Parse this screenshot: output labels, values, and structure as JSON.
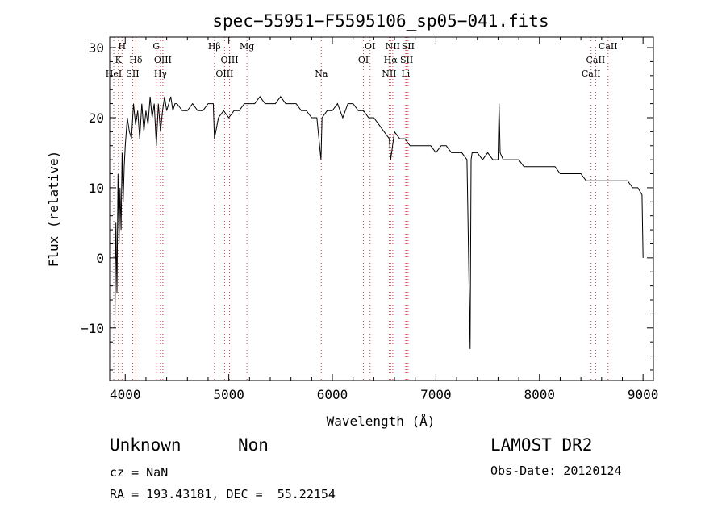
{
  "chart_data": {
    "type": "line",
    "title": "spec−55951−F5595106_sp05−041.fits",
    "xlabel": "Wavelength (Å)",
    "ylabel": "Flux (relative)",
    "xlim": [
      3850,
      9100
    ],
    "ylim": [
      -17.5,
      31.5
    ],
    "xticks": [
      4000,
      5000,
      6000,
      7000,
      8000,
      9000
    ],
    "xtick_labels": [
      "4000",
      "5000",
      "6000",
      "7000",
      "8000",
      "9000"
    ],
    "yticks": [
      -10,
      0,
      10,
      20,
      30
    ],
    "ytick_labels": [
      "−10",
      "0",
      "10",
      "20",
      "30"
    ],
    "grid": false,
    "series": [
      {
        "x": [
          3900,
          3910,
          3920,
          3930,
          3940,
          3950,
          3960,
          3970,
          3980,
          3990,
          4000,
          4020,
          4040,
          4060,
          4080,
          4100,
          4120,
          4140,
          4160,
          4180,
          4200,
          4220,
          4240,
          4260,
          4280,
          4300,
          4320,
          4340,
          4360,
          4380,
          4400,
          4420,
          4440,
          4460,
          4480,
          4500,
          4550,
          4600,
          4650,
          4700,
          4750,
          4800,
          4850,
          4861,
          4900,
          4950,
          5000,
          5050,
          5100,
          5150,
          5200,
          5250,
          5300,
          5350,
          5400,
          5450,
          5500,
          5550,
          5600,
          5650,
          5700,
          5750,
          5800,
          5850,
          5890,
          5900,
          5950,
          6000,
          6050,
          6100,
          6150,
          6200,
          6250,
          6300,
          6350,
          6400,
          6450,
          6500,
          6550,
          6563,
          6600,
          6650,
          6700,
          6750,
          6800,
          6850,
          6900,
          6950,
          7000,
          7050,
          7100,
          7150,
          7200,
          7250,
          7300,
          7330,
          7340,
          7350,
          7360,
          7400,
          7450,
          7500,
          7550,
          7600,
          7610,
          7620,
          7650,
          7700,
          7750,
          7800,
          7850,
          7900,
          7950,
          8000,
          8050,
          8100,
          8150,
          8200,
          8250,
          8300,
          8350,
          8400,
          8450,
          8500,
          8550,
          8600,
          8650,
          8700,
          8750,
          8800,
          8850,
          8900,
          8950,
          8990,
          9000
        ],
        "values": [
          -10,
          5,
          -5,
          12,
          2,
          10,
          4,
          15,
          8,
          13,
          16,
          20,
          18,
          17,
          22,
          19,
          21,
          17,
          22,
          18,
          21,
          19,
          23,
          20,
          22,
          16,
          22,
          18,
          21,
          23,
          21,
          22,
          23,
          21,
          22,
          22,
          21,
          21,
          22,
          21,
          21,
          22,
          22,
          17,
          20,
          21,
          20,
          21,
          21,
          22,
          22,
          22,
          23,
          22,
          22,
          22,
          23,
          22,
          22,
          22,
          21,
          21,
          20,
          20,
          14,
          20,
          21,
          21,
          22,
          20,
          22,
          22,
          21,
          21,
          20,
          20,
          19,
          18,
          17,
          14,
          18,
          17,
          17,
          16,
          16,
          16,
          16,
          16,
          15,
          16,
          16,
          15,
          15,
          15,
          14,
          -13,
          14,
          15,
          15,
          15,
          14,
          15,
          14,
          14,
          22,
          15,
          14,
          14,
          14,
          14,
          13,
          13,
          13,
          13,
          13,
          13,
          13,
          12,
          12,
          12,
          12,
          12,
          11,
          11,
          11,
          11,
          11,
          11,
          11,
          11,
          11,
          10,
          10,
          9,
          0
        ]
      }
    ],
    "lines": [
      {
        "x": 3889,
        "row": 3,
        "label": "HeI"
      },
      {
        "x": 3934,
        "row": 2,
        "label": "K"
      },
      {
        "x": 3969,
        "row": 1,
        "label": "H"
      },
      {
        "x": 4072,
        "row": 3,
        "label": "SII"
      },
      {
        "x": 4102,
        "row": 2,
        "label": "Hδ"
      },
      {
        "x": 4300,
        "row": 1,
        "label": "G"
      },
      {
        "x": 4340,
        "row": 3,
        "label": "Hγ"
      },
      {
        "x": 4363,
        "row": 2,
        "label": "OIII"
      },
      {
        "x": 4861,
        "row": 1,
        "label": "Hβ"
      },
      {
        "x": 4959,
        "row": 3,
        "label": "OIII"
      },
      {
        "x": 5007,
        "row": 2,
        "label": "OIII"
      },
      {
        "x": 5175,
        "row": 1,
        "label": "Mg"
      },
      {
        "x": 5893,
        "row": 3,
        "label": "Na"
      },
      {
        "x": 6300,
        "row": 2,
        "label": "OI"
      },
      {
        "x": 6364,
        "row": 1,
        "label": "OI"
      },
      {
        "x": 6548,
        "row": 3,
        "label": "NII"
      },
      {
        "x": 6563,
        "row": 2,
        "label": "Hα"
      },
      {
        "x": 6583,
        "row": 1,
        "label": "NII"
      },
      {
        "x": 6708,
        "row": 3,
        "label": "Li"
      },
      {
        "x": 6717,
        "row": 2,
        "label": "SII"
      },
      {
        "x": 6731,
        "row": 1,
        "label": "SII"
      },
      {
        "x": 8498,
        "row": 3,
        "label": "CaII"
      },
      {
        "x": 8542,
        "row": 2,
        "label": "CaII"
      },
      {
        "x": 8662,
        "row": 1,
        "label": "CaII"
      }
    ]
  },
  "info": {
    "class": "Unknown",
    "subclass": "Non",
    "cz": "cz = NaN",
    "coords": "RA = 193.43181, DEC =  55.22154",
    "survey": "LAMOST DR2",
    "obs_date": "Obs-Date: 20120124"
  }
}
